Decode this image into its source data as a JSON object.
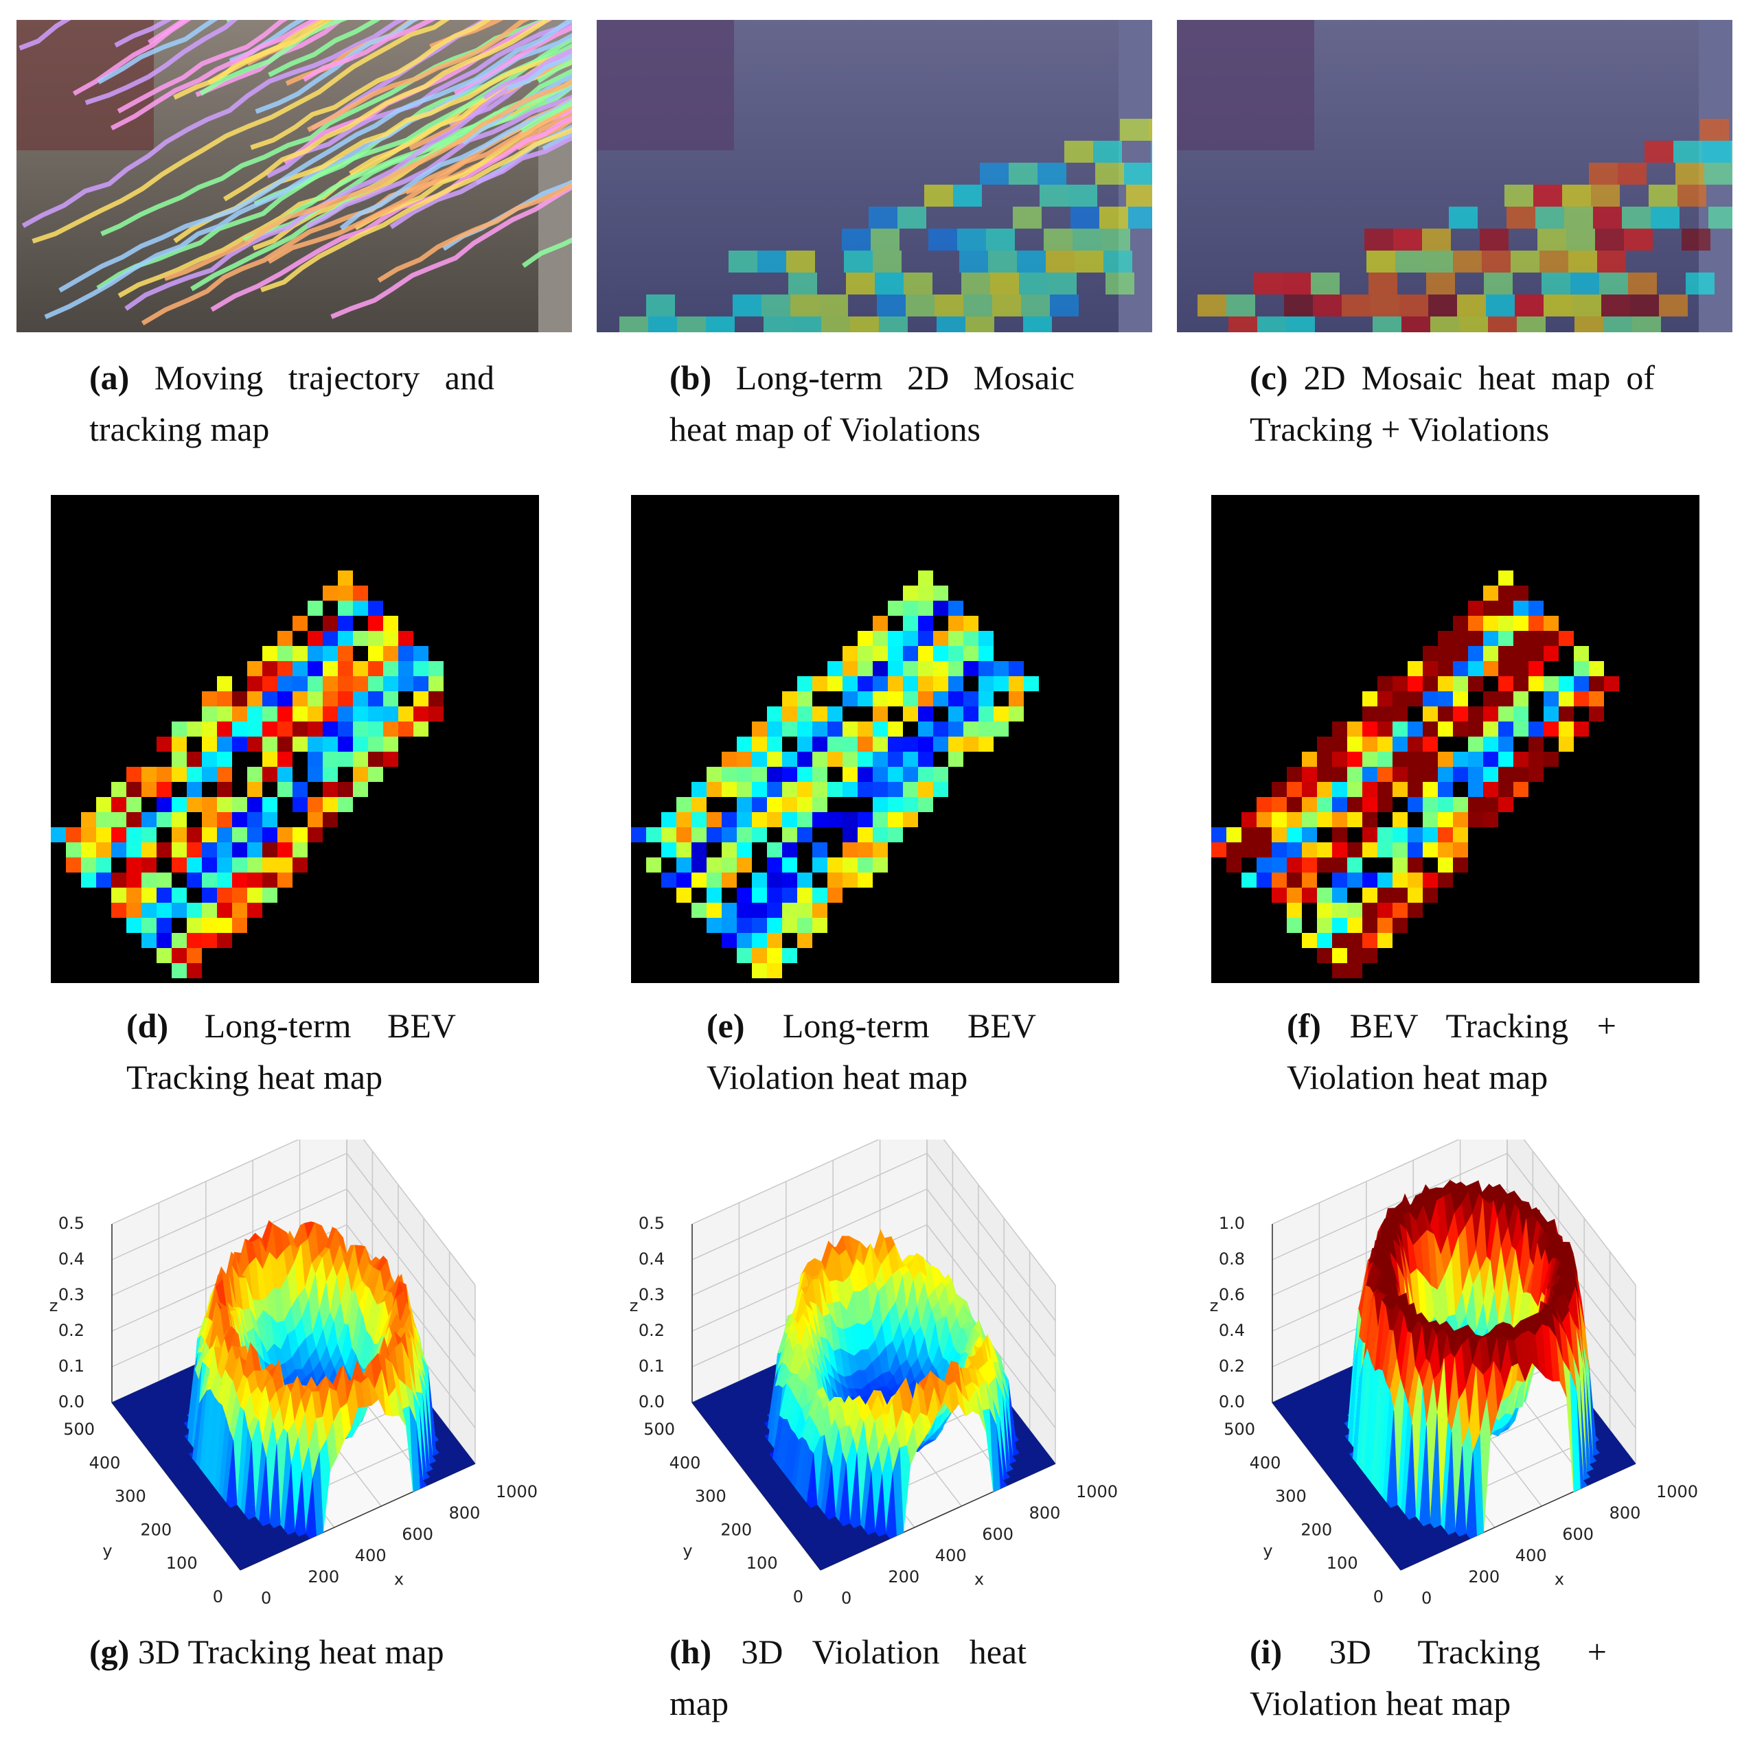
{
  "panels": [
    {
      "label": "(a)",
      "caption": "Moving trajectory and tracking map"
    },
    {
      "label": "(b)",
      "caption": "Long-term 2D Mosaic heat map of Violations"
    },
    {
      "label": "(c)",
      "caption": "2D Mosaic heat map of Tracking + Violations"
    },
    {
      "label": "(d)",
      "caption": "Long-term BEV Tracking heat map"
    },
    {
      "label": "(e)",
      "caption": "Long-term BEV Violation heat map"
    },
    {
      "label": "(f)",
      "caption": "BEV Tracking + Violation heat map"
    },
    {
      "label": "(g)",
      "caption": "3D Tracking heat map"
    },
    {
      "label": "(h)",
      "caption": "3D Violation heat map"
    },
    {
      "label": "(i)",
      "caption": "3D Tracking + Violation heat map"
    }
  ],
  "plots": [
    {
      "xlabel": "x",
      "ylabel": "y",
      "zlabel": "z",
      "xlim": [
        0,
        1000
      ],
      "ylim": [
        0,
        500
      ],
      "zlim": [
        0,
        0.5
      ],
      "xticks": [
        0,
        200,
        400,
        600,
        800,
        1000
      ],
      "yticks": [
        0,
        100,
        200,
        300,
        400,
        500
      ],
      "zticks": [
        {
          "value": 0,
          "label": "0.0"
        },
        0.1,
        0.2,
        0.3,
        0.4,
        0.5
      ]
    },
    {
      "xlabel": "x",
      "ylabel": "y",
      "zlabel": "z",
      "xlim": [
        0,
        1000
      ],
      "ylim": [
        0,
        500
      ],
      "zlim": [
        0,
        0.5
      ],
      "xticks": [
        0,
        200,
        400,
        600,
        800,
        1000
      ],
      "yticks": [
        0,
        100,
        200,
        300,
        400,
        500
      ],
      "zticks": [
        {
          "value": 0,
          "label": "0.0"
        },
        0.1,
        0.2,
        0.3,
        0.4,
        0.5
      ]
    },
    {
      "xlabel": "x",
      "ylabel": "y",
      "zlabel": "z",
      "xlim": [
        0,
        1000
      ],
      "ylim": [
        0,
        500
      ],
      "zlim": [
        0,
        1
      ],
      "xticks": [
        0,
        200,
        400,
        600,
        800,
        1000
      ],
      "yticks": [
        0,
        100,
        200,
        300,
        400,
        500
      ],
      "zticks": [
        {
          "value": 0,
          "label": "0.0"
        },
        0.2,
        0.4,
        0.6,
        0.8,
        {
          "value": 1,
          "label": "1.0"
        }
      ]
    }
  ]
}
